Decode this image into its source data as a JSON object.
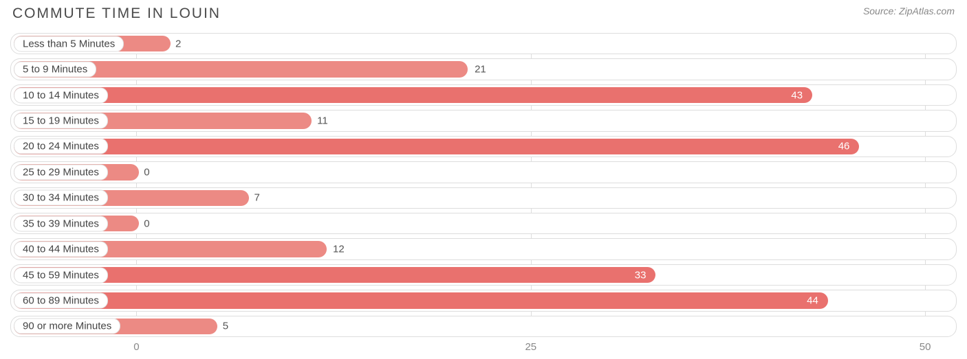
{
  "title": "COMMUTE TIME IN LOUIN",
  "source": "Source: ZipAtlas.com",
  "chart": {
    "type": "bar-horizontal",
    "x_min": -8,
    "x_max": 52,
    "x_ticks": [
      0,
      25,
      50
    ],
    "bar_color": "#ec8a84",
    "bar_highlight_color": "#e9716e",
    "track_border_color": "#dddddd",
    "grid_color": "#dddddd",
    "background_color": "#ffffff",
    "title_color": "#4a4a4a",
    "label_text_color": "#444444",
    "value_text_dark": "#555555",
    "value_text_light": "#ffffff",
    "title_fontsize": 21,
    "label_fontsize": 15,
    "bars": [
      {
        "label": "Less than 5 Minutes",
        "value": 2,
        "highlight": false
      },
      {
        "label": "5 to 9 Minutes",
        "value": 21,
        "highlight": false
      },
      {
        "label": "10 to 14 Minutes",
        "value": 43,
        "highlight": true
      },
      {
        "label": "15 to 19 Minutes",
        "value": 11,
        "highlight": false
      },
      {
        "label": "20 to 24 Minutes",
        "value": 46,
        "highlight": true
      },
      {
        "label": "25 to 29 Minutes",
        "value": 0,
        "highlight": false
      },
      {
        "label": "30 to 34 Minutes",
        "value": 7,
        "highlight": false
      },
      {
        "label": "35 to 39 Minutes",
        "value": 0,
        "highlight": false
      },
      {
        "label": "40 to 44 Minutes",
        "value": 12,
        "highlight": false
      },
      {
        "label": "45 to 59 Minutes",
        "value": 33,
        "highlight": true
      },
      {
        "label": "60 to 89 Minutes",
        "value": 44,
        "highlight": true
      },
      {
        "label": "90 or more Minutes",
        "value": 5,
        "highlight": false
      }
    ]
  }
}
